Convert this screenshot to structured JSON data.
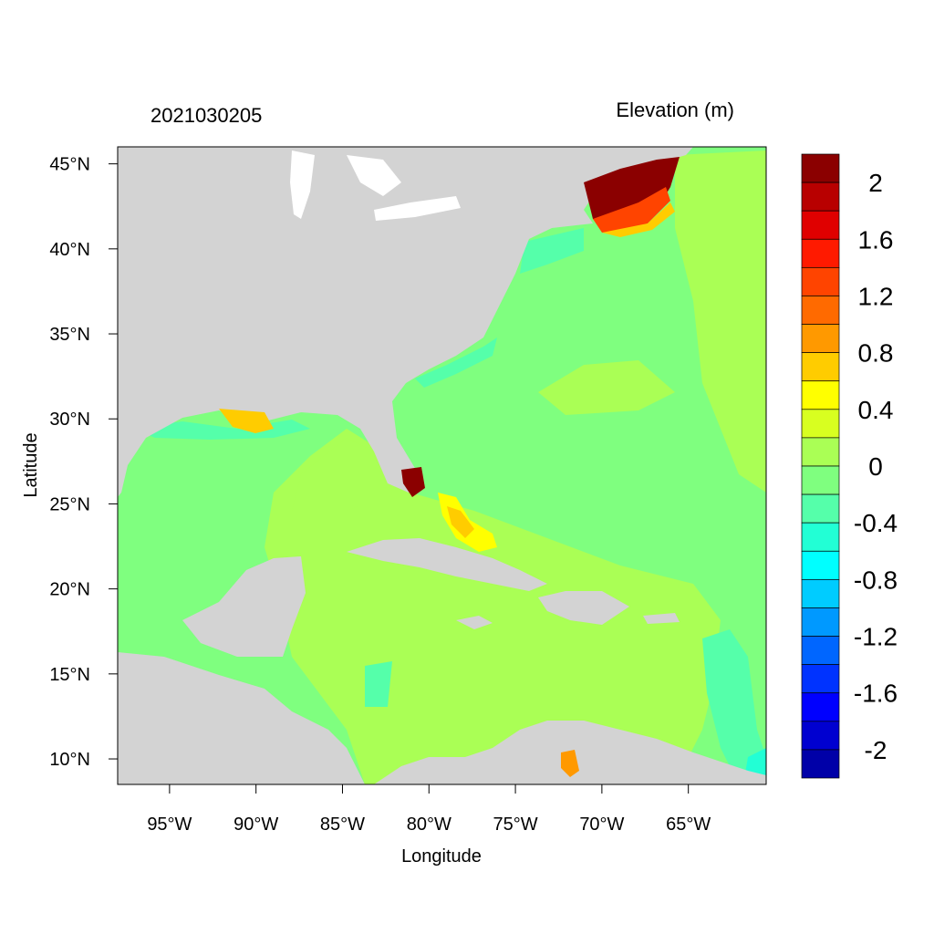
{
  "title_left": "2021030205",
  "title_right": "Elevation (m)",
  "x_axis": {
    "label": "Longitude",
    "range": [
      -98,
      -60.5
    ],
    "ticks": [
      {
        "value": -95,
        "label": "95°W"
      },
      {
        "value": -90,
        "label": "90°W"
      },
      {
        "value": -85,
        "label": "85°W"
      },
      {
        "value": -80,
        "label": "80°W"
      },
      {
        "value": -75,
        "label": "75°W"
      },
      {
        "value": -70,
        "label": "70°W"
      },
      {
        "value": -65,
        "label": "65°W"
      }
    ]
  },
  "y_axis": {
    "label": "Latitude",
    "range": [
      8.5,
      46
    ],
    "ticks": [
      {
        "value": 10,
        "label": "10°N"
      },
      {
        "value": 15,
        "label": "15°N"
      },
      {
        "value": 20,
        "label": "20°N"
      },
      {
        "value": 25,
        "label": "25°N"
      },
      {
        "value": 30,
        "label": "30°N"
      },
      {
        "value": 35,
        "label": "35°N"
      },
      {
        "value": 40,
        "label": "40°N"
      },
      {
        "value": 45,
        "label": "45°N"
      }
    ]
  },
  "colorbar": {
    "colors_top_to_bottom": [
      "#8b0000",
      "#b80000",
      "#e00000",
      "#ff1a00",
      "#ff4400",
      "#ff6a00",
      "#ff9900",
      "#ffcc00",
      "#ffff00",
      "#d8ff20",
      "#aaff55",
      "#7fff7f",
      "#55ffaa",
      "#22ffd5",
      "#00ffff",
      "#00ccff",
      "#0099ff",
      "#0066ff",
      "#0033ff",
      "#0000ff",
      "#0000d0",
      "#0000a8"
    ],
    "labels": [
      {
        "value": 2,
        "label": "2"
      },
      {
        "value": 1.6,
        "label": "1.6"
      },
      {
        "value": 1.2,
        "label": "1.2"
      },
      {
        "value": 0.8,
        "label": "0.8"
      },
      {
        "value": 0.4,
        "label": "0.4"
      },
      {
        "value": 0,
        "label": "0"
      },
      {
        "value": -0.4,
        "label": "-0.4"
      },
      {
        "value": -0.8,
        "label": "-0.8"
      },
      {
        "value": -1.2,
        "label": "-1.2"
      },
      {
        "value": -1.6,
        "label": "-1.6"
      },
      {
        "value": -2,
        "label": "-2"
      }
    ],
    "range": [
      -2.2,
      2.2
    ]
  },
  "colors": {
    "land": "#d3d3d3",
    "lakes": "#ffffff",
    "ocean_base": "#7fff7f",
    "caribbean": "#aaff55",
    "shelf_low": "#55ffaa",
    "surge_high": "#8b0000"
  }
}
